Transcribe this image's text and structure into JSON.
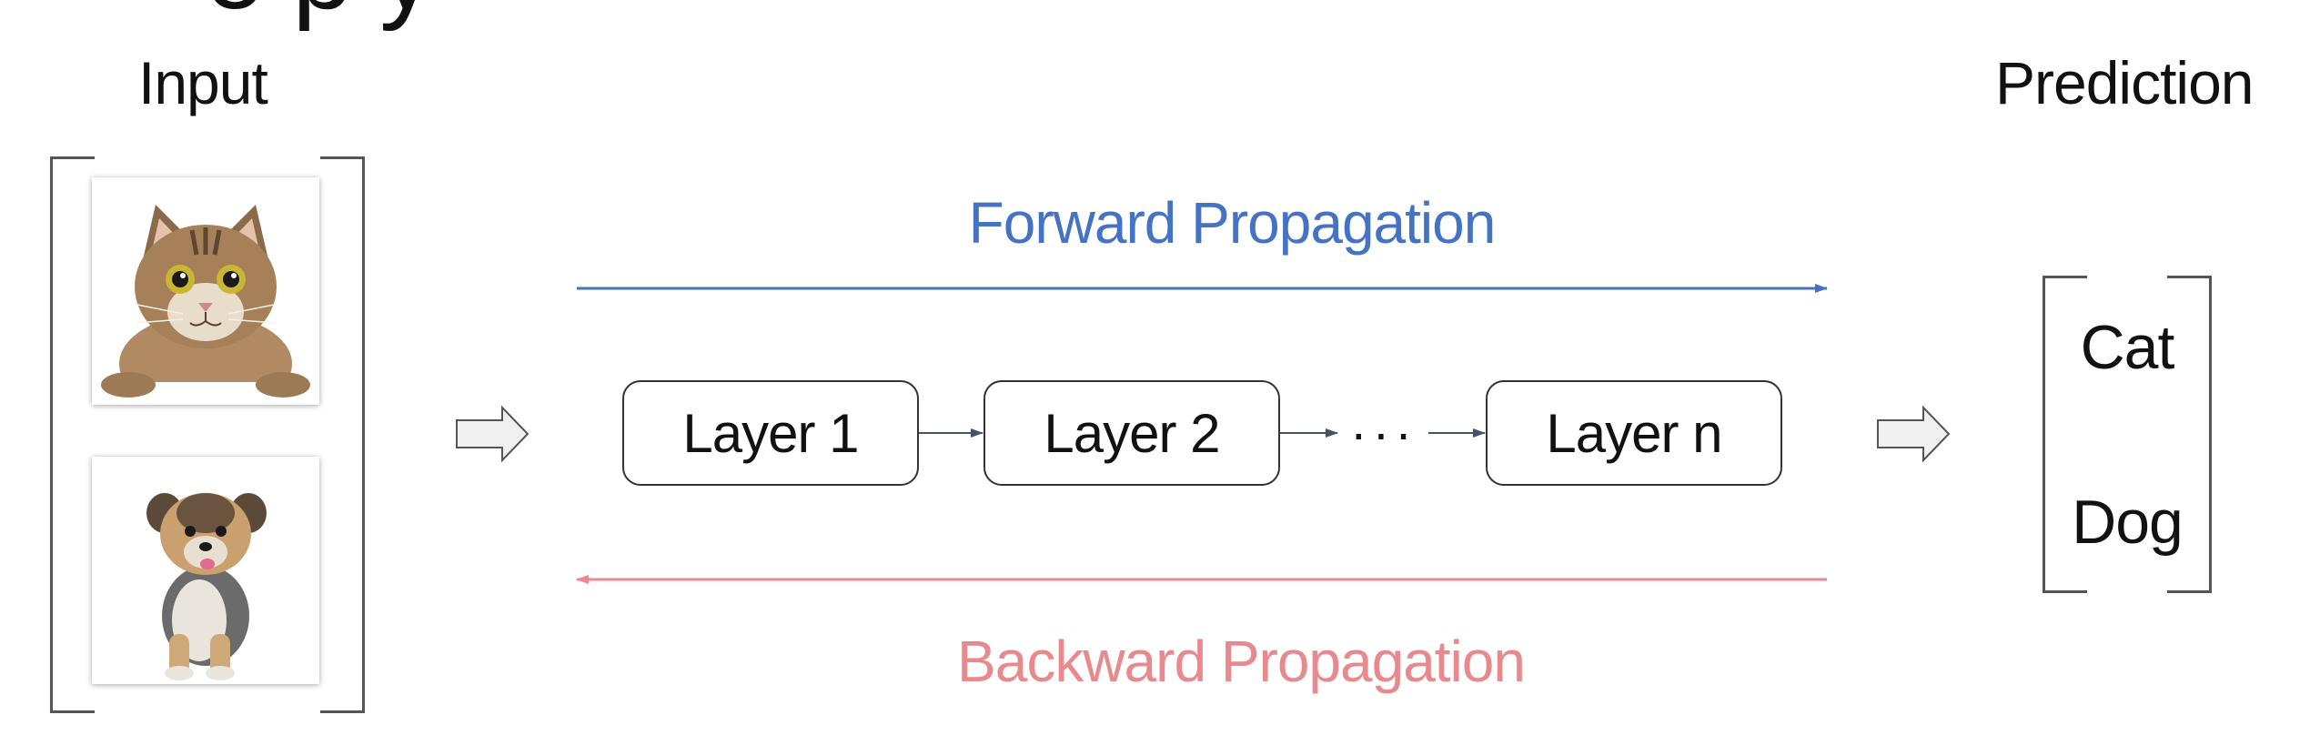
{
  "title_fragment": "o p  y",
  "input": {
    "heading": "Input",
    "images": [
      {
        "subject": "cat",
        "icon": "cat-photo"
      },
      {
        "subject": "dog",
        "icon": "dog-photo"
      }
    ]
  },
  "network": {
    "layers": [
      "Layer 1",
      "Layer 2",
      "Layer n"
    ],
    "ellipsis": "···",
    "forward_label": "Forward Propagation",
    "backward_label": "Backward Propagation"
  },
  "prediction": {
    "heading": "Prediction",
    "classes": [
      "Cat",
      "Dog"
    ]
  },
  "colors": {
    "forward": "#4472c4",
    "backward": "#e8898d",
    "layer_arrow": "#44546a",
    "bracket": "#555555"
  }
}
